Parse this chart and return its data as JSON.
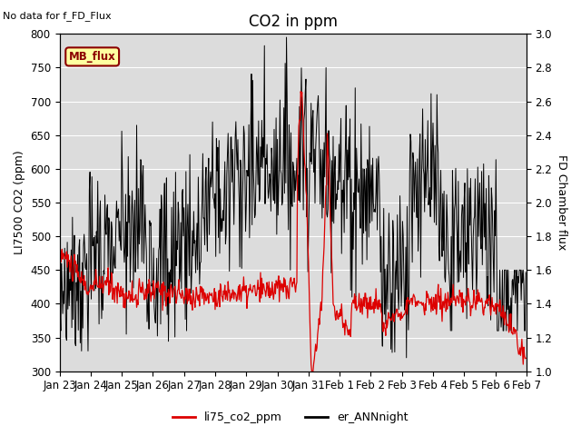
{
  "title": "CO2 in ppm",
  "top_left_text": "No data for f_FD_Flux",
  "ylabel_left": "LI7500 CO2 (ppm)",
  "ylabel_right": "FD Chamber flux",
  "ylim_left": [
    300,
    800
  ],
  "ylim_right": [
    1.0,
    3.0
  ],
  "bg_color": "#dcdcdc",
  "fig_bg_color": "#ffffff",
  "legend_box_label": "MB_flux",
  "legend_box_bg": "#ffffa0",
  "legend_box_edge": "#8b0000",
  "line1_label": "li75_co2_ppm",
  "line1_color": "#dd0000",
  "line2_label": "er_ANNnight",
  "line2_color": "#000000",
  "x_tick_labels": [
    "Jan 23",
    "Jan 24",
    "Jan 25",
    "Jan 26",
    "Jan 27",
    "Jan 28",
    "Jan 29",
    "Jan 30",
    "Jan 31",
    "Feb 1",
    "Feb 2",
    "Feb 3",
    "Feb 4",
    "Feb 5",
    "Feb 6",
    "Feb 7"
  ],
  "title_fontsize": 12,
  "axis_fontsize": 9,
  "tick_fontsize": 8.5
}
